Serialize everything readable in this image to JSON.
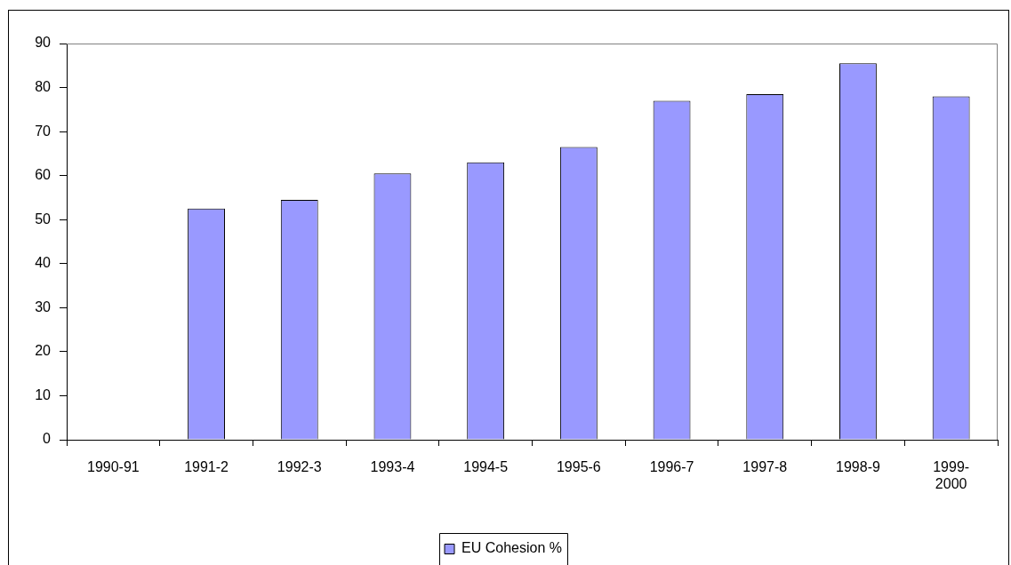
{
  "chart_data": {
    "type": "bar",
    "categories": [
      "1990-91",
      "1991-2",
      "1992-3",
      "1993-4",
      "1994-5",
      "1995-6",
      "1996-7",
      "1997-8",
      "1998-9",
      "1999-2000"
    ],
    "series": [
      {
        "name": "EU Cohesion %",
        "color": "#9999ff",
        "values": [
          null,
          52.5,
          54.5,
          60.5,
          63,
          66.5,
          77,
          78.5,
          85.5,
          78
        ]
      }
    ],
    "ylim": [
      0,
      90
    ],
    "yticks": [
      0,
      10,
      20,
      30,
      40,
      50,
      60,
      70,
      80,
      90
    ],
    "legend": "bottom"
  }
}
